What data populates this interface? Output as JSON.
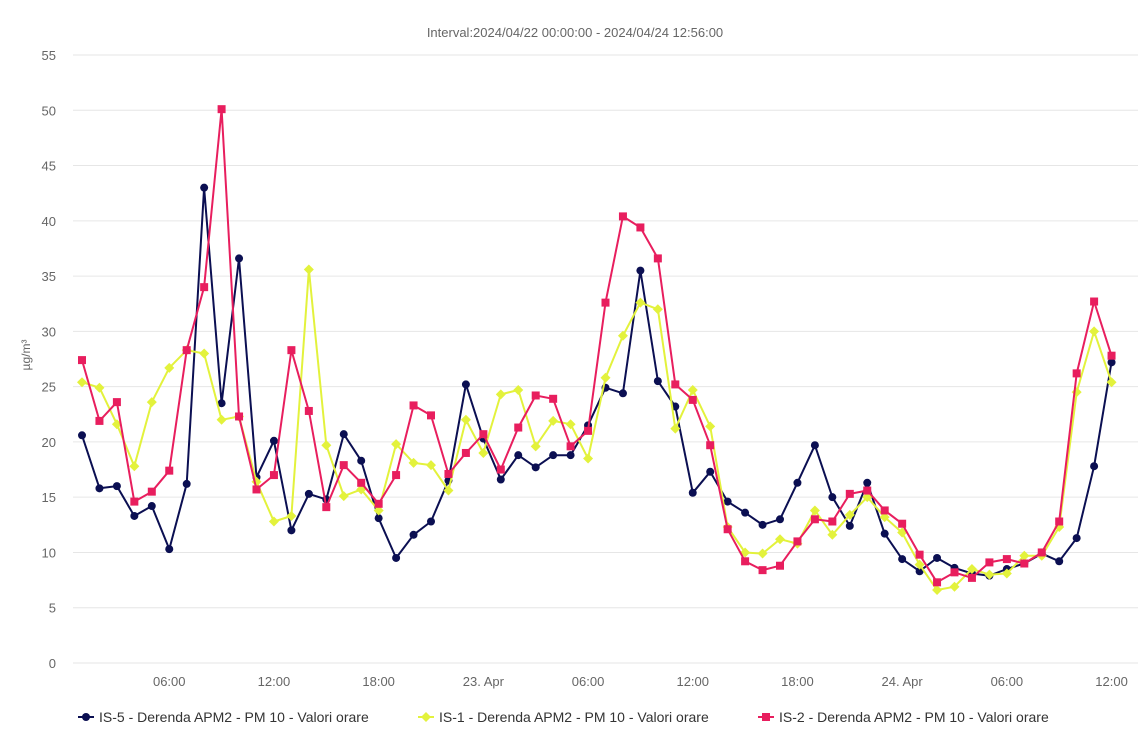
{
  "chart_data": {
    "type": "line",
    "subtitle": "Interval:2024/04/22 00:00:00 - 2024/04/24 12:56:00",
    "ylabel": "µg/m³",
    "ylim": [
      0,
      55
    ],
    "yticks": [
      "0",
      "5",
      "10",
      "15",
      "20",
      "25",
      "30",
      "35",
      "40",
      "45",
      "50",
      "55"
    ],
    "xlim": [
      0,
      61
    ],
    "xticks": [
      {
        "value": 6,
        "label": "06:00"
      },
      {
        "value": 12,
        "label": "12:00"
      },
      {
        "value": 18,
        "label": "18:00"
      },
      {
        "value": 24,
        "label": "23. Apr"
      },
      {
        "value": 30,
        "label": "06:00"
      },
      {
        "value": 36,
        "label": "12:00"
      },
      {
        "value": 42,
        "label": "18:00"
      },
      {
        "value": 48,
        "label": "24. Apr"
      },
      {
        "value": 54,
        "label": "06:00"
      },
      {
        "value": 60,
        "label": "12:00"
      }
    ],
    "grid": true,
    "legend_position": "bottom",
    "series": [
      {
        "name": "IS-5 - Derenda APM2 - PM 10 - Valori orare",
        "color": "#0b0f52",
        "marker": "circle",
        "values": [
          20.6,
          15.8,
          16.0,
          13.3,
          14.2,
          10.3,
          16.2,
          43.0,
          23.5,
          36.6,
          16.8,
          20.1,
          12.0,
          15.3,
          14.8,
          20.7,
          18.3,
          13.1,
          9.5,
          11.6,
          12.8,
          16.5,
          25.2,
          20.3,
          16.6,
          18.8,
          17.7,
          18.8,
          18.8,
          21.5,
          24.9,
          24.4,
          35.5,
          25.5,
          23.2,
          15.4,
          17.3,
          14.6,
          13.6,
          12.5,
          13.0,
          16.3,
          19.7,
          15.0,
          12.4,
          16.3,
          11.7,
          9.4,
          8.3,
          9.5,
          8.6,
          8.1,
          7.9,
          8.5,
          9.0,
          9.9,
          9.2,
          11.3,
          17.8,
          27.2
        ]
      },
      {
        "name": "IS-1 - Derenda APM2 - PM 10 - Valori orare",
        "color": "#e3f23c",
        "marker": "diamond",
        "values": [
          25.4,
          24.9,
          21.6,
          17.8,
          23.6,
          26.7,
          28.3,
          28.0,
          22.0,
          22.3,
          16.4,
          12.8,
          13.3,
          35.6,
          19.7,
          15.1,
          15.7,
          13.8,
          19.8,
          18.1,
          17.9,
          15.6,
          22.0,
          19.0,
          24.3,
          24.7,
          19.6,
          21.9,
          21.6,
          18.5,
          25.8,
          29.6,
          32.6,
          32.0,
          21.2,
          24.7,
          21.4,
          12.3,
          10.0,
          9.9,
          11.2,
          10.8,
          13.8,
          11.6,
          13.4,
          15.0,
          13.2,
          11.8,
          8.9,
          6.6,
          6.9,
          8.5,
          8.0,
          8.1,
          9.7,
          9.7,
          12.3,
          24.5,
          30.0,
          25.4
        ]
      },
      {
        "name": "IS-2 - Derenda APM2 - PM 10 - Valori orare",
        "color": "#e81e5e",
        "marker": "square",
        "values": [
          27.4,
          21.9,
          23.6,
          14.6,
          15.5,
          17.4,
          28.3,
          34.0,
          50.1,
          22.3,
          15.7,
          17.0,
          28.3,
          22.8,
          14.1,
          17.9,
          16.3,
          14.4,
          17.0,
          23.3,
          22.4,
          17.1,
          19.0,
          20.7,
          17.5,
          21.3,
          24.2,
          23.9,
          19.6,
          21.0,
          32.6,
          40.4,
          39.4,
          36.6,
          25.2,
          23.8,
          19.7,
          12.1,
          9.2,
          8.4,
          8.8,
          11.0,
          13.0,
          12.8,
          15.3,
          15.6,
          13.8,
          12.6,
          9.8,
          7.3,
          8.2,
          7.7,
          9.1,
          9.4,
          9.0,
          10.0,
          12.8,
          26.2,
          32.7,
          27.8
        ]
      }
    ]
  }
}
